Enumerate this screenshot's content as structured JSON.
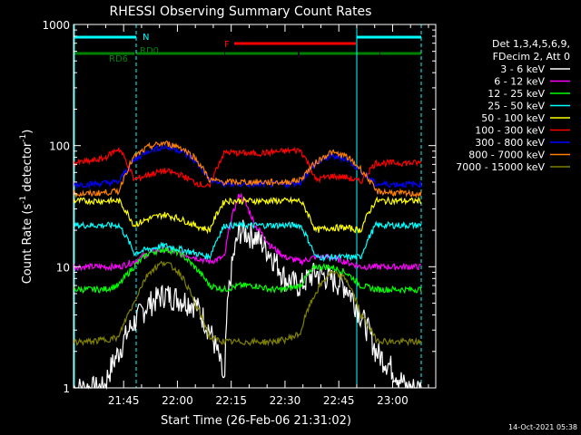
{
  "chart_data": {
    "type": "line",
    "title": "RHESSI Observing Summary Count Rates",
    "xlabel": "Start Time (26-Feb-06 21:31:02)",
    "ylabel": "Count Rate (s⁻¹ detector⁻¹)",
    "ylabel_main": "Count Rate (s",
    "ylabel_sup1": "-1",
    "ylabel_mid": " detector",
    "ylabel_sup2": "-1",
    "ylabel_end": ")",
    "yscale": "log",
    "ylim": [
      1,
      1000
    ],
    "xlim": [
      "21:31",
      "23:12"
    ],
    "x_ticks": [
      "21:45",
      "22:00",
      "22:15",
      "22:30",
      "22:45",
      "23:00"
    ],
    "y_ticks": [
      "1",
      "10",
      "100",
      "1000"
    ],
    "legend_position": "top-right",
    "legend_header": [
      "Det 1,3,4,5,6,9,",
      "FDecim 2, Att 0"
    ],
    "timestamp": "14-Oct-2021 05:38",
    "grid": false,
    "series": [
      {
        "name": "3 - 6 keV",
        "color": "#ffffff",
        "approx_values": [
          1,
          1,
          1,
          2,
          3.5,
          5,
          6,
          5.5,
          5,
          3,
          1,
          20,
          18,
          13,
          8,
          7,
          9,
          8,
          7,
          4,
          2,
          1.5,
          1,
          1
        ]
      },
      {
        "name": "6 - 12 keV",
        "color": "#ff00ff",
        "approx_values": [
          10,
          10,
          10,
          10,
          11,
          13,
          14,
          13,
          12,
          11,
          12,
          40,
          22,
          15,
          12,
          11,
          12,
          12,
          11,
          10,
          10,
          10,
          10,
          10
        ]
      },
      {
        "name": "12 - 25 keV",
        "color": "#00ff00",
        "approx_values": [
          6.5,
          6.5,
          6.5,
          7,
          10,
          13,
          14,
          13,
          10,
          7,
          6.5,
          7,
          7,
          6.5,
          6.5,
          7,
          10,
          10,
          9,
          7,
          6.5,
          6.5,
          6.5,
          6.5
        ]
      },
      {
        "name": "25 - 50 keV",
        "color": "#00ffff",
        "approx_values": [
          22,
          22,
          22,
          22,
          13,
          14,
          15,
          14,
          13,
          12,
          22,
          22,
          22,
          22,
          22,
          22,
          12,
          12,
          12,
          12,
          22,
          22,
          22,
          22
        ]
      },
      {
        "name": "50 - 100 keV",
        "color": "#ffff00",
        "approx_values": [
          35,
          35,
          35,
          35,
          22,
          25,
          27,
          25,
          22,
          20,
          35,
          35,
          35,
          35,
          35,
          35,
          20,
          21,
          21,
          20,
          35,
          35,
          35,
          35
        ]
      },
      {
        "name": "100 - 300 keV",
        "color": "#ff0000",
        "approx_values": [
          72,
          74,
          78,
          95,
          52,
          58,
          62,
          58,
          50,
          45,
          88,
          87,
          86,
          88,
          90,
          92,
          52,
          56,
          55,
          50,
          72,
          72,
          72,
          72
        ]
      },
      {
        "name": "300 - 800 keV",
        "color": "#0000ff",
        "approx_values": [
          48,
          48,
          49,
          50,
          75,
          92,
          98,
          92,
          75,
          52,
          48,
          48,
          48,
          48,
          48,
          50,
          70,
          82,
          78,
          62,
          48,
          48,
          48,
          48
        ]
      },
      {
        "name": "800 - 7000 keV",
        "color": "#ff8000",
        "approx_values": [
          40,
          40,
          41,
          42,
          80,
          98,
          105,
          98,
          80,
          52,
          50,
          50,
          50,
          50,
          50,
          52,
          72,
          88,
          82,
          64,
          42,
          41,
          40,
          40
        ]
      },
      {
        "name": "7000 - 15000 keV",
        "color": "#808000",
        "approx_values": [
          2.4,
          2.4,
          2.5,
          2.6,
          5,
          9,
          11,
          9,
          5,
          2.6,
          2.4,
          2.4,
          2.4,
          2.4,
          2.5,
          2.8,
          6,
          9,
          8,
          4,
          2.5,
          2.4,
          2.4,
          2.4
        ]
      }
    ],
    "annotations": [
      {
        "label": "N",
        "color": "#00ffff"
      },
      {
        "label": "RD0",
        "color": "#008000"
      },
      {
        "label": "RD6",
        "color": "#008000"
      },
      {
        "label": "F",
        "color": "#ff0000"
      }
    ]
  }
}
